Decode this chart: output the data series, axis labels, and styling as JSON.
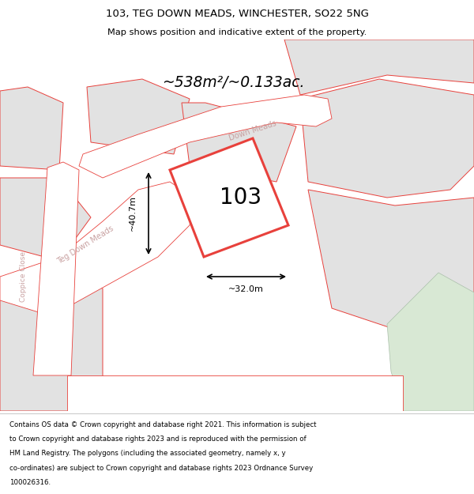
{
  "title": "103, TEG DOWN MEADS, WINCHESTER, SO22 5NG",
  "subtitle": "Map shows position and indicative extent of the property.",
  "area_text": "~538m²/~0.133ac.",
  "plot_number": "103",
  "dim_width": "~32.0m",
  "dim_height": "~40.7m",
  "footer_lines": [
    "Contains OS data © Crown copyright and database right 2021. This information is subject",
    "to Crown copyright and database rights 2023 and is reproduced with the permission of",
    "HM Land Registry. The polygons (including the associated geometry, namely x, y",
    "co-ordinates) are subject to Crown copyright and database rights 2023 Ordnance Survey",
    "100026316."
  ],
  "bg_map_color": "#f0efed",
  "plot_fill": "#ffffff",
  "plot_edge": "#e8413c",
  "road_color": "#ffffff",
  "green_area": "#d8e8d4",
  "block_fill": "#e2e2e2",
  "block_stroke": "#e8413c",
  "footer_bg": "#ffffff",
  "header_bg": "#ffffff",
  "road_label_color": "#c8a0a0",
  "teg_down_label": "Teg Down Meads",
  "down_meads_label": "Down Meads",
  "coppice_label": "Coppice Close"
}
